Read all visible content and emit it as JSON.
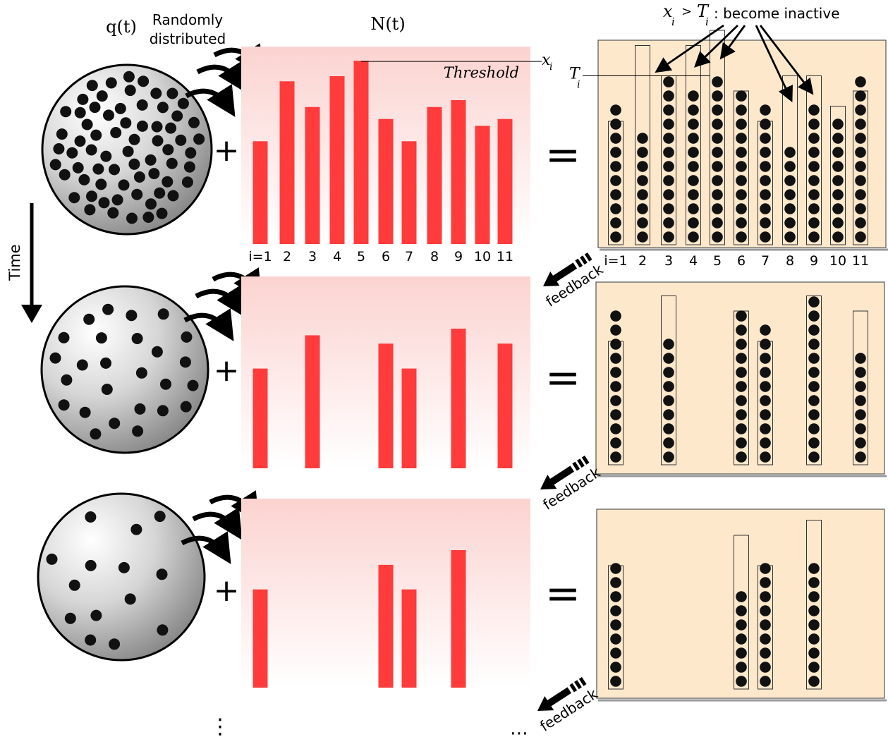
{
  "labels": {
    "q": "q(t)",
    "randomly_line1": "Randomly",
    "randomly_line2": "distributed",
    "n": "N(t)",
    "threshold": "Threshold",
    "x": "x",
    "x_sub": "i",
    "t": "T",
    "t_sub": "i",
    "inactive_x": "x",
    "inactive_x_sub": "i",
    "inactive_gt": ">",
    "inactive_t": "T",
    "inactive_t_sub": "i",
    "inactive_rest": ": become inactive",
    "time": "Time",
    "feedback": "feedback",
    "plus": "+",
    "equals": "=",
    "vdots": "⋮",
    "hdots": "⋯"
  },
  "index_labels": [
    "i=1",
    "2",
    "3",
    "4",
    "5",
    "6",
    "7",
    "8",
    "9",
    "10",
    "11"
  ],
  "colors": {
    "bar": "#ff3b3b",
    "bar_panel_top": "#fbd3d0",
    "bar_panel_bottom": "#ffffff",
    "result_panel": "#fde8cc",
    "dot": "#111111",
    "sphere_light": "#ffffff",
    "sphere_dark": "#7a7a7a"
  },
  "chart_data": {
    "type": "bar",
    "categories": [
      "1",
      "2",
      "3",
      "4",
      "5",
      "6",
      "7",
      "8",
      "9",
      "10",
      "11"
    ],
    "series": [
      {
        "step": 1,
        "values": [
          60,
          95,
          80,
          98,
          107,
          73,
          60,
          80,
          84,
          69,
          73
        ]
      },
      {
        "step": 2,
        "values": [
          60,
          null,
          80,
          null,
          null,
          75,
          60,
          null,
          84,
          null,
          75
        ]
      },
      {
        "step": 3,
        "values": [
          60,
          null,
          null,
          null,
          null,
          75,
          60,
          null,
          84,
          null,
          null
        ]
      }
    ],
    "ylim": [
      0,
      112
    ]
  },
  "result_panels": [
    {
      "thresholds": [
        8,
        13,
        11,
        13,
        14,
        10,
        8,
        11,
        11,
        9,
        10
      ],
      "dots": [
        10,
        8,
        12,
        11,
        12,
        11,
        10,
        7,
        10,
        9,
        12
      ]
    },
    {
      "thresholds": [
        8,
        null,
        11,
        null,
        null,
        10,
        8,
        null,
        11,
        null,
        10
      ],
      "dots": [
        11,
        null,
        9,
        null,
        null,
        11,
        10,
        null,
        12,
        null,
        8
      ]
    },
    {
      "thresholds": [
        8,
        null,
        null,
        null,
        null,
        10,
        8,
        null,
        11,
        null,
        null
      ],
      "dots": [
        9,
        null,
        null,
        null,
        null,
        7,
        9,
        null,
        9,
        null,
        null
      ]
    }
  ]
}
